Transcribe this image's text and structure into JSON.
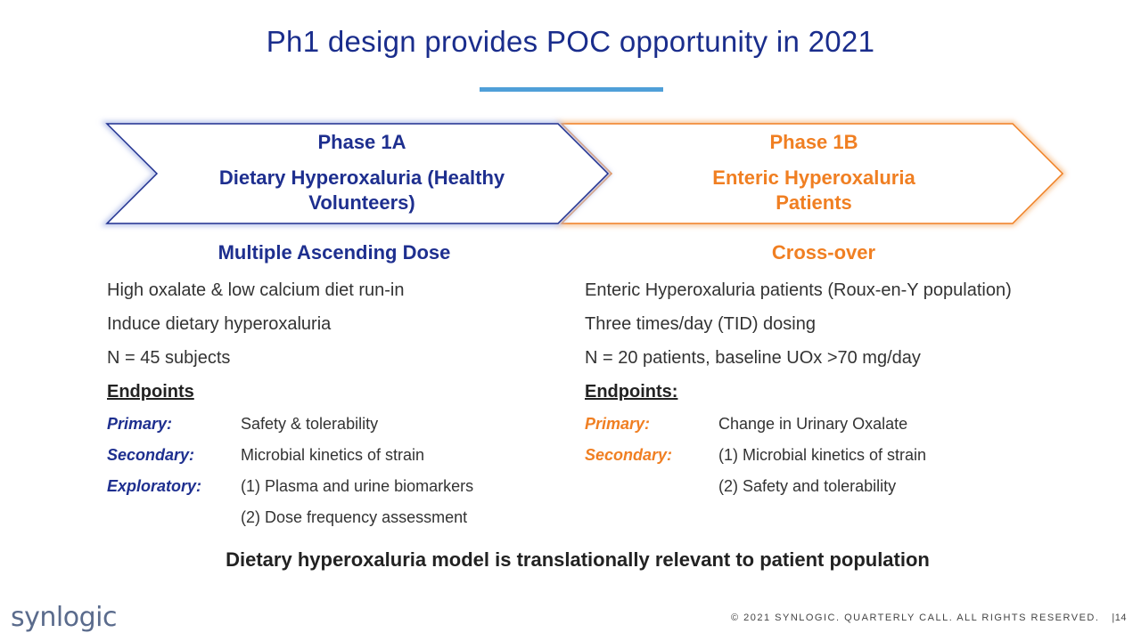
{
  "title": "Ph1 design provides POC opportunity in 2021",
  "colors": {
    "navy": "#1e2f8f",
    "orange": "#f07f22",
    "accent_rule": "#4f9fd8"
  },
  "phase_a": {
    "title": "Phase 1A",
    "subtitle": "Dietary Hyperoxaluria (Healthy Volunteers)",
    "design": "Multiple Ascending Dose",
    "bullets": [
      "High oxalate & low calcium diet run-in",
      "Induce dietary hyperoxaluria",
      "N = 45 subjects"
    ],
    "endpoints_heading": "Endpoints",
    "endpoints": [
      {
        "label": "Primary:",
        "value": "Safety & tolerability"
      },
      {
        "label": "Secondary:",
        "value": "Microbial kinetics of strain"
      },
      {
        "label": "Exploratory:",
        "value": "(1) Plasma and urine biomarkers"
      },
      {
        "label": "",
        "value": "(2) Dose frequency assessment"
      }
    ]
  },
  "phase_b": {
    "title": "Phase 1B",
    "subtitle": "Enteric Hyperoxaluria Patients",
    "design": "Cross-over",
    "bullets": [
      "Enteric Hyperoxaluria patients (Roux-en-Y population)",
      "Three times/day (TID) dosing",
      "N = 20 patients, baseline UOx >70 mg/day"
    ],
    "endpoints_heading": "Endpoints:",
    "endpoints": [
      {
        "label": "Primary:",
        "value": "Change in Urinary Oxalate"
      },
      {
        "label": "Secondary:",
        "value": "(1) Microbial kinetics of strain"
      },
      {
        "label": "",
        "value": "(2) Safety and tolerability"
      }
    ]
  },
  "conclusion": "Dietary hyperoxaluria model is translationally relevant to patient population",
  "logo_text": "synlogic",
  "footer": {
    "copyright": "© 2021 SYNLOGIC. QUARTERLY CALL. ALL RIGHTS RESERVED.",
    "page": "|14"
  }
}
